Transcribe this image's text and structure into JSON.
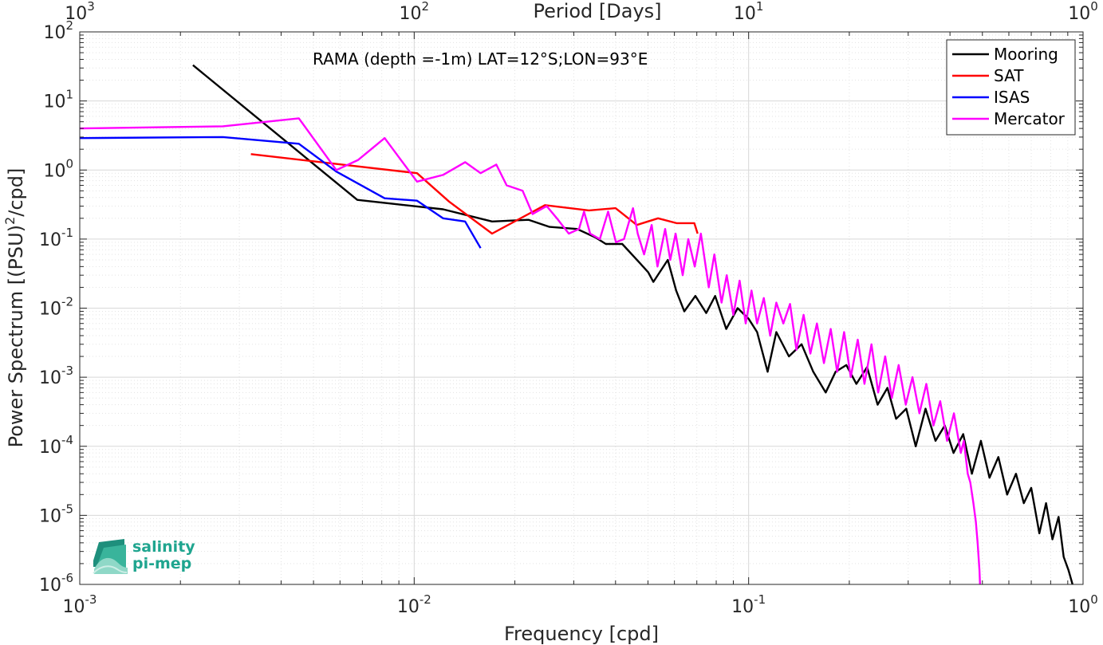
{
  "chart_data": {
    "type": "line",
    "title": "",
    "annotation": "RAMA (depth =-1m) LAT=12°S;LON=93°E",
    "xlabel": "Frequency [cpd]",
    "ylabel_parts": [
      "Power Spectrum [(PSU)",
      "2",
      "/cpd]"
    ],
    "top_xlabel": "Period [Days]",
    "x_scale": "log",
    "y_scale": "log",
    "xlim": [
      0.001,
      1
    ],
    "ylim": [
      1e-06,
      100
    ],
    "grid": true,
    "legend_position": "top-right",
    "x_ticks": [
      {
        "value": 0.001,
        "base": "10",
        "exp": "-3"
      },
      {
        "value": 0.01,
        "base": "10",
        "exp": "-2"
      },
      {
        "value": 0.1,
        "base": "10",
        "exp": "-1"
      },
      {
        "value": 1,
        "base": "10",
        "exp": "0"
      }
    ],
    "top_ticks": [
      {
        "frequency": 0.001,
        "base": "10",
        "exp": "3"
      },
      {
        "frequency": 0.01,
        "base": "10",
        "exp": "2"
      },
      {
        "frequency": 0.1,
        "base": "10",
        "exp": "1"
      },
      {
        "frequency": 1,
        "base": "10",
        "exp": "0"
      }
    ],
    "y_ticks": [
      {
        "value": 100,
        "base": "10",
        "exp": "2"
      },
      {
        "value": 10,
        "base": "10",
        "exp": "1"
      },
      {
        "value": 1,
        "base": "10",
        "exp": "0"
      },
      {
        "value": 0.1,
        "base": "10",
        "exp": "-1"
      },
      {
        "value": 0.01,
        "base": "10",
        "exp": "-2"
      },
      {
        "value": 0.001,
        "base": "10",
        "exp": "-3"
      },
      {
        "value": 0.0001,
        "base": "10",
        "exp": "-4"
      },
      {
        "value": 1e-05,
        "base": "10",
        "exp": "-5"
      },
      {
        "value": 1e-06,
        "base": "10",
        "exp": "-6"
      }
    ],
    "series": [
      {
        "name": "Mooring",
        "color": "#000000",
        "points": [
          [
            0.00218,
            33
          ],
          [
            0.00676,
            0.37
          ],
          [
            0.0122,
            0.27
          ],
          [
            0.0171,
            0.18
          ],
          [
            0.022,
            0.19
          ],
          [
            0.0254,
            0.15
          ],
          [
            0.0307,
            0.14
          ],
          [
            0.0349,
            0.105
          ],
          [
            0.0374,
            0.085
          ],
          [
            0.0419,
            0.085
          ],
          [
            0.0473,
            0.045
          ],
          [
            0.0501,
            0.033
          ],
          [
            0.0519,
            0.024
          ],
          [
            0.0573,
            0.05
          ],
          [
            0.0607,
            0.018
          ],
          [
            0.0642,
            0.009
          ],
          [
            0.0693,
            0.015
          ],
          [
            0.0747,
            0.0085
          ],
          [
            0.0794,
            0.015
          ],
          [
            0.0857,
            0.005
          ],
          [
            0.0927,
            0.01
          ],
          [
            0.1,
            0.007
          ],
          [
            0.106,
            0.0045
          ],
          [
            0.114,
            0.0012
          ],
          [
            0.121,
            0.0045
          ],
          [
            0.132,
            0.002
          ],
          [
            0.144,
            0.003
          ],
          [
            0.156,
            0.0012
          ],
          [
            0.17,
            0.0006
          ],
          [
            0.182,
            0.0012
          ],
          [
            0.196,
            0.0015
          ],
          [
            0.21,
            0.0008
          ],
          [
            0.226,
            0.0014
          ],
          [
            0.243,
            0.0004
          ],
          [
            0.26,
            0.0007
          ],
          [
            0.276,
            0.00025
          ],
          [
            0.296,
            0.00035
          ],
          [
            0.316,
            0.0001
          ],
          [
            0.338,
            0.00035
          ],
          [
            0.362,
            0.00012
          ],
          [
            0.386,
            0.0002
          ],
          [
            0.41,
            8e-05
          ],
          [
            0.438,
            0.00015
          ],
          [
            0.465,
            4e-05
          ],
          [
            0.495,
            0.00012
          ],
          [
            0.525,
            3.5e-05
          ],
          [
            0.558,
            7e-05
          ],
          [
            0.593,
            2e-05
          ],
          [
            0.63,
            4e-05
          ],
          [
            0.665,
            1.5e-05
          ],
          [
            0.7,
            2.5e-05
          ],
          [
            0.74,
            5.5e-06
          ],
          [
            0.775,
            1.5e-05
          ],
          [
            0.81,
            4.5e-06
          ],
          [
            0.845,
            9.5e-06
          ],
          [
            0.875,
            2.5e-06
          ],
          [
            0.905,
            1.6e-06
          ],
          [
            0.93,
            1e-06
          ]
        ]
      },
      {
        "name": "SAT",
        "color": "#ff0000",
        "points": [
          [
            0.00325,
            1.7
          ],
          [
            0.0102,
            0.9
          ],
          [
            0.0127,
            0.35
          ],
          [
            0.0171,
            0.12
          ],
          [
            0.0246,
            0.31
          ],
          [
            0.0333,
            0.26
          ],
          [
            0.04,
            0.28
          ],
          [
            0.0463,
            0.16
          ],
          [
            0.0536,
            0.2
          ],
          [
            0.0609,
            0.17
          ],
          [
            0.0688,
            0.17
          ],
          [
            0.0704,
            0.12
          ]
        ]
      },
      {
        "name": "ISAS",
        "color": "#0000ff",
        "points": [
          [
            0.001,
            2.9
          ],
          [
            0.00268,
            3.0
          ],
          [
            0.00452,
            2.4
          ],
          [
            0.00585,
            0.95
          ],
          [
            0.00816,
            0.39
          ],
          [
            0.0102,
            0.36
          ],
          [
            0.0122,
            0.2
          ],
          [
            0.0142,
            0.18
          ],
          [
            0.0158,
            0.074
          ]
        ]
      },
      {
        "name": "Mercator",
        "color": "#ff00ff",
        "points": [
          [
            0.001,
            4.0
          ],
          [
            0.00268,
            4.3
          ],
          [
            0.00452,
            5.6
          ],
          [
            0.00585,
            1.0
          ],
          [
            0.0068,
            1.4
          ],
          [
            0.00816,
            2.9
          ],
          [
            0.0102,
            0.68
          ],
          [
            0.0122,
            0.85
          ],
          [
            0.0142,
            1.3
          ],
          [
            0.0158,
            0.9
          ],
          [
            0.0176,
            1.2
          ],
          [
            0.0189,
            0.6
          ],
          [
            0.0211,
            0.5
          ],
          [
            0.0226,
            0.23
          ],
          [
            0.0249,
            0.3
          ],
          [
            0.0267,
            0.2
          ],
          [
            0.029,
            0.12
          ],
          [
            0.0311,
            0.14
          ],
          [
            0.0322,
            0.25
          ],
          [
            0.0336,
            0.12
          ],
          [
            0.0359,
            0.1
          ],
          [
            0.038,
            0.25
          ],
          [
            0.0401,
            0.09
          ],
          [
            0.0424,
            0.1
          ],
          [
            0.0451,
            0.28
          ],
          [
            0.0466,
            0.12
          ],
          [
            0.0487,
            0.06
          ],
          [
            0.0513,
            0.16
          ],
          [
            0.0534,
            0.04
          ],
          [
            0.0563,
            0.14
          ],
          [
            0.0583,
            0.05
          ],
          [
            0.0605,
            0.12
          ],
          [
            0.0635,
            0.03
          ],
          [
            0.066,
            0.1
          ],
          [
            0.069,
            0.04
          ],
          [
            0.072,
            0.12
          ],
          [
            0.076,
            0.02
          ],
          [
            0.079,
            0.06
          ],
          [
            0.083,
            0.012
          ],
          [
            0.086,
            0.03
          ],
          [
            0.09,
            0.008
          ],
          [
            0.094,
            0.025
          ],
          [
            0.098,
            0.006
          ],
          [
            0.102,
            0.018
          ],
          [
            0.106,
            0.006
          ],
          [
            0.111,
            0.014
          ],
          [
            0.116,
            0.004
          ],
          [
            0.121,
            0.012
          ],
          [
            0.127,
            0.006
          ],
          [
            0.133,
            0.0115
          ],
          [
            0.139,
            0.0025
          ],
          [
            0.146,
            0.008
          ],
          [
            0.153,
            0.0022
          ],
          [
            0.16,
            0.006
          ],
          [
            0.168,
            0.0016
          ],
          [
            0.176,
            0.005
          ],
          [
            0.184,
            0.0012
          ],
          [
            0.193,
            0.0045
          ],
          [
            0.202,
            0.001
          ],
          [
            0.212,
            0.0035
          ],
          [
            0.222,
            0.0008
          ],
          [
            0.233,
            0.003
          ],
          [
            0.244,
            0.0006
          ],
          [
            0.256,
            0.002
          ],
          [
            0.268,
            0.0005
          ],
          [
            0.281,
            0.0015
          ],
          [
            0.295,
            0.0004
          ],
          [
            0.309,
            0.001
          ],
          [
            0.324,
            0.0003
          ],
          [
            0.34,
            0.0008
          ],
          [
            0.357,
            0.0002
          ],
          [
            0.374,
            0.00045
          ],
          [
            0.392,
            0.00012
          ],
          [
            0.411,
            0.0003
          ],
          [
            0.431,
            8e-05
          ],
          [
            0.44,
            0.00012
          ],
          [
            0.452,
            4e-05
          ],
          [
            0.46,
            3e-05
          ],
          [
            0.47,
            1.5e-05
          ],
          [
            0.478,
            8e-06
          ],
          [
            0.484,
            4e-06
          ],
          [
            0.49,
            1.6e-06
          ],
          [
            0.492,
            1e-06
          ]
        ]
      }
    ]
  },
  "logo": {
    "line1": "salinity",
    "line2": "pi-mep",
    "color": "#1fa58f"
  }
}
